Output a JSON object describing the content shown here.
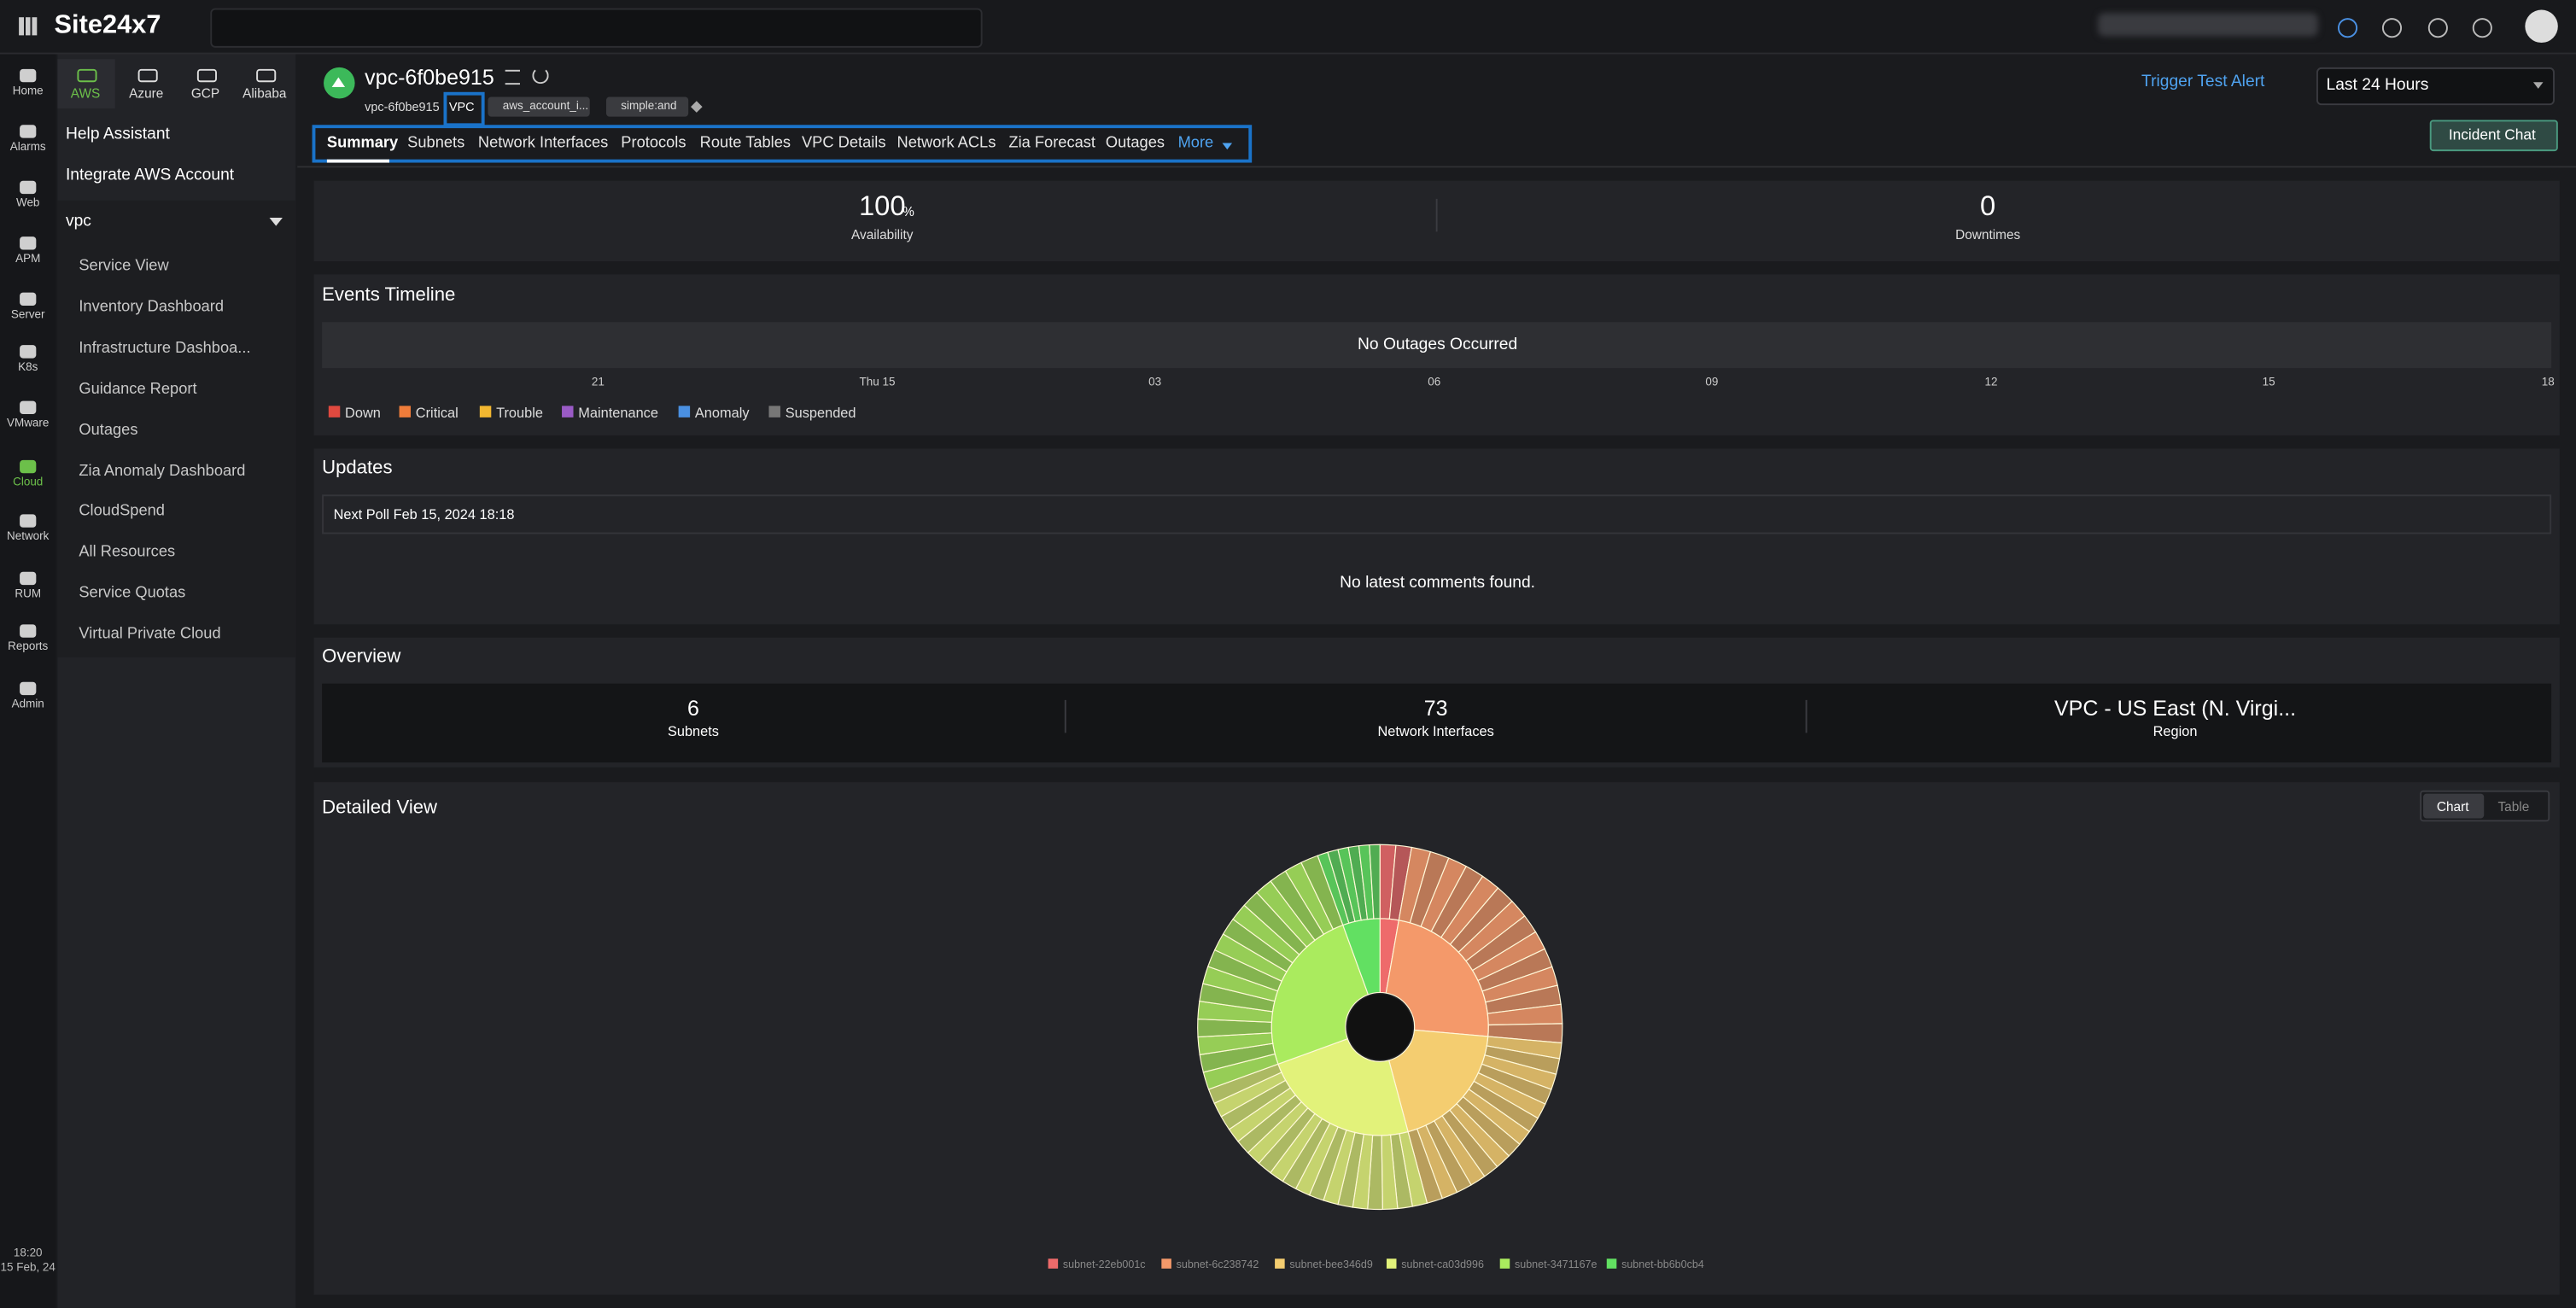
{
  "topbar": {
    "logo": "Site24x7"
  },
  "rail": [
    "Home",
    "Alarms",
    "Web",
    "APM",
    "Server",
    "K8s",
    "VMware",
    "Cloud",
    "Network",
    "RUM",
    "Reports",
    "Admin"
  ],
  "rail_time": [
    "18:20",
    "15 Feb, 24"
  ],
  "cloud_tabs": [
    "AWS",
    "Azure",
    "GCP",
    "Alibaba"
  ],
  "sidebar": {
    "help": "Help Assistant",
    "integrate": "Integrate AWS Account",
    "group": "vpc",
    "items": [
      "Service View",
      "Inventory Dashboard",
      "Infrastructure Dashboa...",
      "Guidance Report",
      "Outages",
      "Zia Anomaly Dashboard",
      "CloudSpend",
      "All Resources",
      "Service Quotas",
      "Virtual Private Cloud"
    ]
  },
  "monitor": {
    "title": "vpc-6f0be915",
    "name": "vpc-6f0be915",
    "type": "VPC",
    "tags": [
      "aws_account_i...",
      "simple:and"
    ],
    "trigger": "Trigger Test Alert",
    "period": "Last 24 Hours",
    "chat": "Incident Chat"
  },
  "tabs": [
    "Summary",
    "Subnets",
    "Network Interfaces",
    "Protocols",
    "Route Tables",
    "VPC Details",
    "Network ACLs",
    "Zia Forecast",
    "Outages",
    "More"
  ],
  "summary": [
    {
      "value": "100",
      "unit": "%",
      "label": "Availability"
    },
    {
      "value": "0",
      "label": "Downtimes"
    }
  ],
  "events": {
    "title": "Events Timeline",
    "message": "No Outages Occurred",
    "axis": [
      "21",
      "Thu 15",
      "03",
      "06",
      "09",
      "12",
      "15",
      "18"
    ],
    "legend": [
      {
        "name": "Down",
        "color": "#e0493f"
      },
      {
        "name": "Critical",
        "color": "#ef7c3a"
      },
      {
        "name": "Trouble",
        "color": "#f2b731"
      },
      {
        "name": "Maintenance",
        "color": "#9a5bc6"
      },
      {
        "name": "Anomaly",
        "color": "#4a90e2"
      },
      {
        "name": "Suspended",
        "color": "#777777"
      }
    ]
  },
  "updates": {
    "title": "Updates",
    "next_poll": "Next Poll Feb 15, 2024 18:18",
    "empty": "No latest comments found."
  },
  "overview": {
    "title": "Overview",
    "stats": [
      {
        "value": "6",
        "label": "Subnets"
      },
      {
        "value": "73",
        "label": "Network Interfaces"
      },
      {
        "value": "VPC - US East (N. Virgi...",
        "label": "Region"
      }
    ]
  },
  "detail": {
    "title": "Detailed View",
    "toggle": [
      "Chart",
      "Table"
    ],
    "legend": [
      {
        "name": "subnet-22eb001c",
        "color": "#ee6b6b"
      },
      {
        "name": "subnet-6c238742",
        "color": "#f4996a"
      },
      {
        "name": "subnet-bee346d9",
        "color": "#f4cd70"
      },
      {
        "name": "subnet-ca03d996",
        "color": "#e2f27a"
      },
      {
        "name": "subnet-3471167e",
        "color": "#aaeb5e"
      },
      {
        "name": "subnet-bb6b0cb4",
        "color": "#62e062"
      }
    ]
  }
}
